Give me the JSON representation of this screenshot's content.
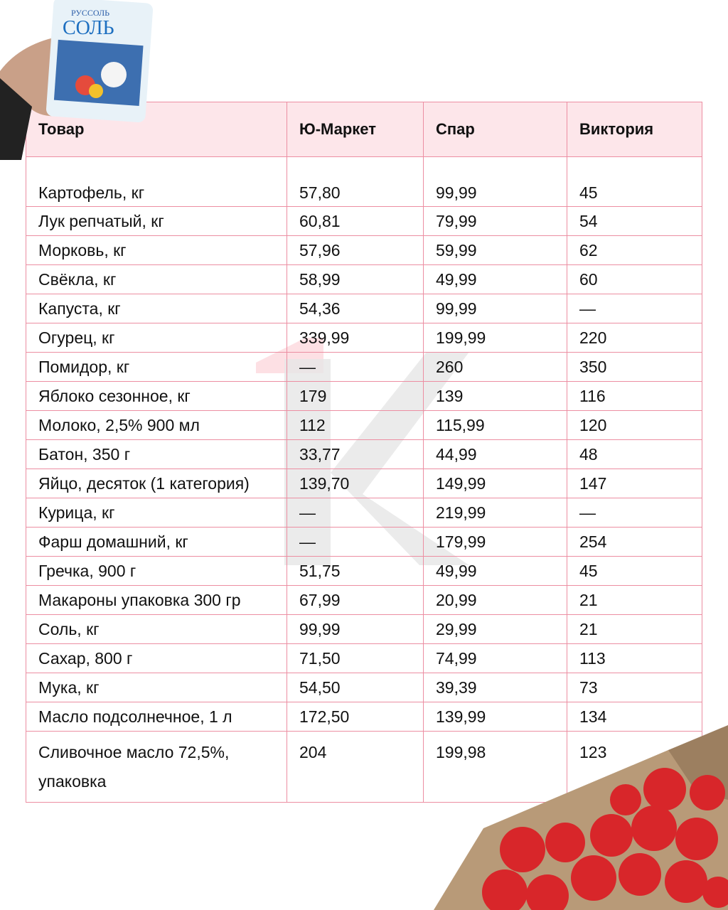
{
  "table": {
    "headers": [
      "Товар",
      "Ю-Маркет",
      "Спар",
      "Виктория"
    ],
    "rows": [
      [
        "Картофель, кг",
        "57,80",
        "99,99",
        "45"
      ],
      [
        "Лук репчатый, кг",
        "60,81",
        "79,99",
        "54"
      ],
      [
        "Морковь, кг",
        "57,96",
        "59,99",
        "62"
      ],
      [
        "Свёкла, кг",
        "58,99",
        "49,99",
        "60"
      ],
      [
        "Капуста, кг",
        "54,36",
        "99,99",
        "—"
      ],
      [
        "Огурец, кг",
        "339,99",
        "199,99",
        "220"
      ],
      [
        "Помидор, кг",
        "—",
        "260",
        "350"
      ],
      [
        "Яблоко сезонное, кг",
        "179",
        "139",
        "116"
      ],
      [
        "Молоко, 2,5% 900 мл",
        "112",
        "115,99",
        "120"
      ],
      [
        "Батон, 350 г",
        "33,77",
        "44,99",
        "48"
      ],
      [
        "Яйцо, десяток (1 категория)",
        "139,70",
        "149,99",
        "147"
      ],
      [
        "Курица, кг",
        "—",
        "219,99",
        "—"
      ],
      [
        "Фарш домашний, кг",
        "—",
        "179,99",
        "254"
      ],
      [
        "Гречка, 900 г",
        "51,75",
        "49,99",
        "45"
      ],
      [
        "Макароны упаковка 300 гр",
        "67,99",
        "20,99",
        "21"
      ],
      [
        "Соль, кг",
        "99,99",
        "29,99",
        "21"
      ],
      [
        "Сахар, 800 г",
        "71,50",
        "74,99",
        "113"
      ],
      [
        "Мука, кг",
        "54,50",
        "39,39",
        "73"
      ],
      [
        "Масло подсолнечное, 1 л",
        "172,50",
        "139,99",
        "134"
      ],
      [
        "Сливочное масло 72,5%, упаковка",
        "204",
        "199,98",
        "123"
      ]
    ]
  },
  "images": {
    "salt_pack": {
      "brand": "Руссоль",
      "label": "Соль"
    },
    "tomatoes": "tomatoes-in-box"
  },
  "colors": {
    "border": "#ec8ea2",
    "header_bg": "#fde6ea",
    "watermark": "#e6e6e6",
    "watermark_accent": "#fde0e4"
  }
}
